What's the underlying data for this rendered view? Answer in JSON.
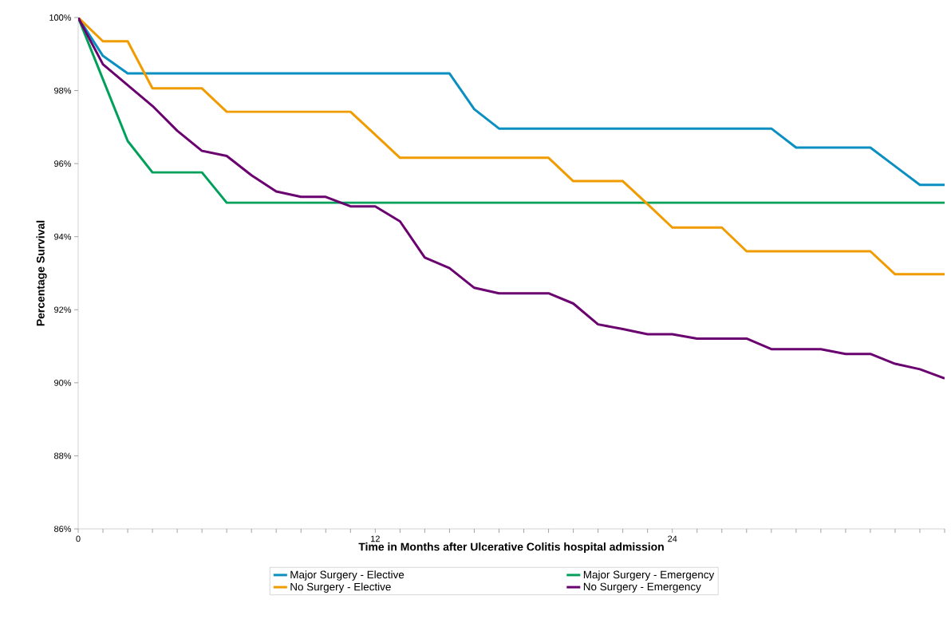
{
  "chart_data": {
    "type": "line",
    "xlabel": "Time in Months after Ulcerative Colitis hospital admission",
    "ylabel": "Percentage Survival",
    "x": [
      0,
      1,
      2,
      3,
      4,
      5,
      6,
      7,
      8,
      9,
      10,
      11,
      12,
      13,
      14,
      15,
      16,
      17,
      18,
      19,
      20,
      21,
      22,
      23,
      24,
      25,
      26,
      27,
      28,
      29,
      30,
      31,
      32,
      33,
      34,
      35
    ],
    "series": [
      {
        "name": "Major Surgery - Elective",
        "color": "#0b8fc1",
        "values": [
          100,
          98.95,
          98.47,
          98.47,
          98.47,
          98.47,
          98.47,
          98.47,
          98.47,
          98.47,
          98.47,
          98.47,
          98.47,
          98.47,
          98.47,
          98.47,
          97.49,
          96.96,
          96.96,
          96.96,
          96.96,
          96.96,
          96.96,
          96.96,
          96.96,
          96.96,
          96.96,
          96.96,
          96.96,
          96.44,
          96.44,
          96.44,
          96.44,
          95.93,
          95.42,
          95.42
        ]
      },
      {
        "name": "Major Surgery - Emergency",
        "color": "#00a05a",
        "values": [
          100,
          98.31,
          96.62,
          95.76,
          95.76,
          95.76,
          94.93,
          94.93,
          94.93,
          94.93,
          94.93,
          94.93,
          94.93,
          94.93,
          94.93,
          94.93,
          94.93,
          94.93,
          94.93,
          94.93,
          94.93,
          94.93,
          94.93,
          94.93,
          94.93,
          94.93,
          94.93,
          94.93,
          94.93,
          94.93,
          94.93,
          94.93,
          94.93,
          94.93,
          94.93,
          94.93
        ]
      },
      {
        "name": "No Surgery - Elective",
        "color": "#f09b00",
        "values": [
          100,
          99.35,
          99.35,
          98.06,
          98.06,
          98.06,
          97.42,
          97.42,
          97.42,
          97.42,
          97.42,
          97.42,
          96.79,
          96.16,
          96.16,
          96.16,
          96.16,
          96.16,
          96.16,
          96.16,
          95.52,
          95.52,
          95.52,
          94.89,
          94.25,
          94.25,
          94.25,
          93.6,
          93.6,
          93.6,
          93.6,
          93.6,
          93.6,
          92.97,
          92.97,
          92.97
        ]
      },
      {
        "name": "No Surgery - Emergency",
        "color": "#6a006f",
        "values": [
          100,
          98.72,
          98.15,
          97.58,
          96.9,
          96.35,
          96.21,
          95.68,
          95.24,
          95.09,
          95.09,
          94.83,
          94.83,
          94.42,
          93.43,
          93.14,
          92.6,
          92.45,
          92.45,
          92.45,
          92.17,
          91.6,
          91.47,
          91.33,
          91.33,
          91.21,
          91.21,
          91.21,
          90.92,
          90.92,
          90.92,
          90.79,
          90.79,
          90.52,
          90.37,
          90.12
        ]
      }
    ],
    "xlim": [
      0,
      35
    ],
    "xticks": [
      0,
      {
        "value": 1,
        "label": null
      },
      {
        "value": 2,
        "label": null
      },
      {
        "value": 3,
        "label": null
      },
      {
        "value": 4,
        "label": null
      },
      {
        "value": 5,
        "label": null
      },
      {
        "value": 6,
        "label": null
      },
      {
        "value": 7,
        "label": null
      },
      {
        "value": 8,
        "label": null
      },
      {
        "value": 9,
        "label": null
      },
      {
        "value": 10,
        "label": null
      },
      {
        "value": 11,
        "label": null
      },
      12,
      {
        "value": 13,
        "label": null
      },
      {
        "value": 14,
        "label": null
      },
      {
        "value": 15,
        "label": null
      },
      {
        "value": 16,
        "label": null
      },
      {
        "value": 17,
        "label": null
      },
      {
        "value": 18,
        "label": null
      },
      {
        "value": 19,
        "label": null
      },
      {
        "value": 20,
        "label": null
      },
      {
        "value": 21,
        "label": null
      },
      {
        "value": 22,
        "label": null
      },
      {
        "value": 23,
        "label": null
      },
      24,
      {
        "value": 25,
        "label": null
      },
      {
        "value": 26,
        "label": null
      },
      {
        "value": 27,
        "label": null
      },
      {
        "value": 28,
        "label": null
      },
      {
        "value": 29,
        "label": null
      },
      {
        "value": 30,
        "label": null
      },
      {
        "value": 31,
        "label": null
      },
      {
        "value": 32,
        "label": null
      },
      {
        "value": 33,
        "label": null
      },
      {
        "value": 34,
        "label": null
      },
      {
        "value": 35,
        "label": null
      }
    ],
    "ylim": [
      86,
      100
    ],
    "yticks": [
      {
        "value": 86,
        "label": "86%"
      },
      {
        "value": 88,
        "label": "88%"
      },
      {
        "value": 90,
        "label": "90%"
      },
      {
        "value": 92,
        "label": "92%"
      },
      {
        "value": 94,
        "label": "94%"
      },
      {
        "value": 96,
        "label": "96%"
      },
      {
        "value": 98,
        "label": "98%"
      },
      {
        "value": 100,
        "label": "100%"
      }
    ],
    "grid": false,
    "legend": "bottom",
    "marker": "none",
    "line_style": "solid"
  }
}
